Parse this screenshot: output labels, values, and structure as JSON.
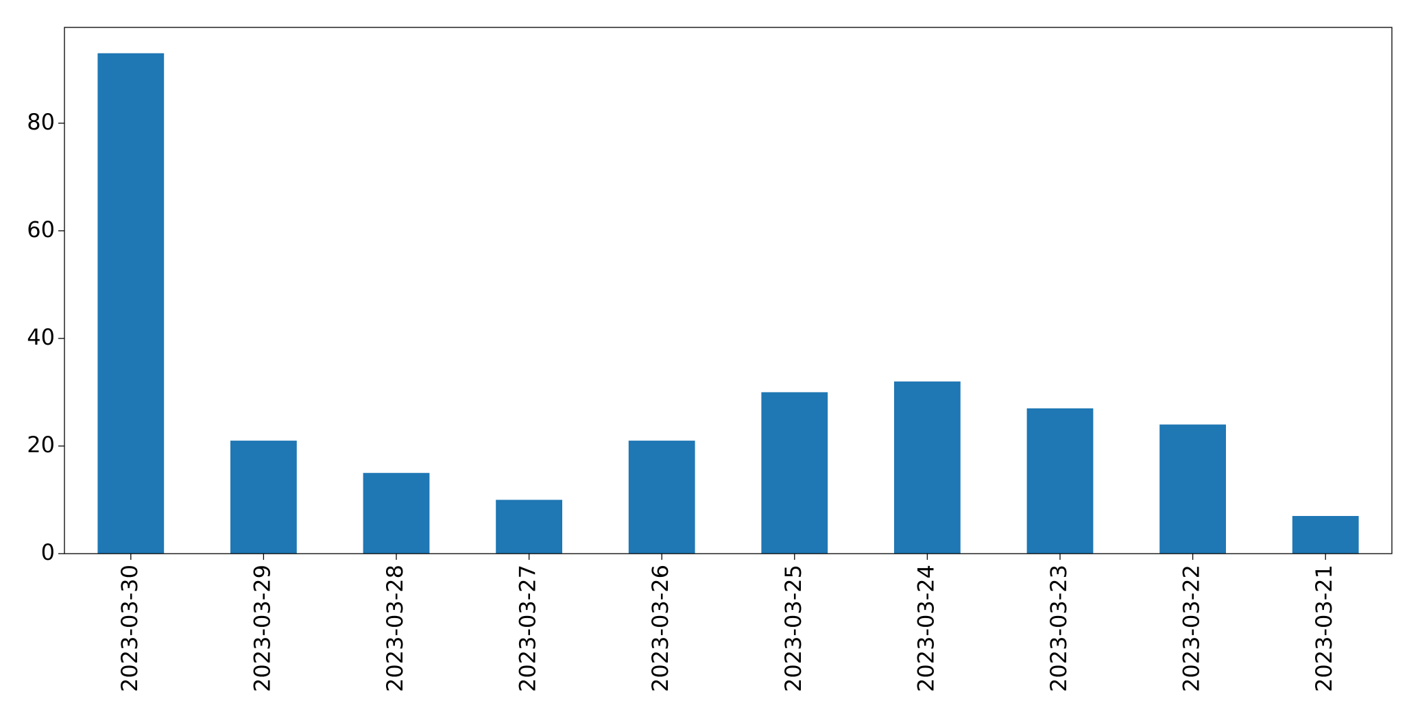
{
  "chart_data": {
    "type": "bar",
    "categories": [
      "2023-03-30",
      "2023-03-29",
      "2023-03-28",
      "2023-03-27",
      "2023-03-26",
      "2023-03-25",
      "2023-03-24",
      "2023-03-23",
      "2023-03-22",
      "2023-03-21"
    ],
    "values": [
      93,
      21,
      15,
      10,
      21,
      30,
      32,
      27,
      24,
      7
    ],
    "color": "#1f77b4",
    "ylim": [
      0,
      97.8
    ],
    "yticks": [
      0,
      20,
      40,
      60,
      80
    ],
    "grid": false
  }
}
